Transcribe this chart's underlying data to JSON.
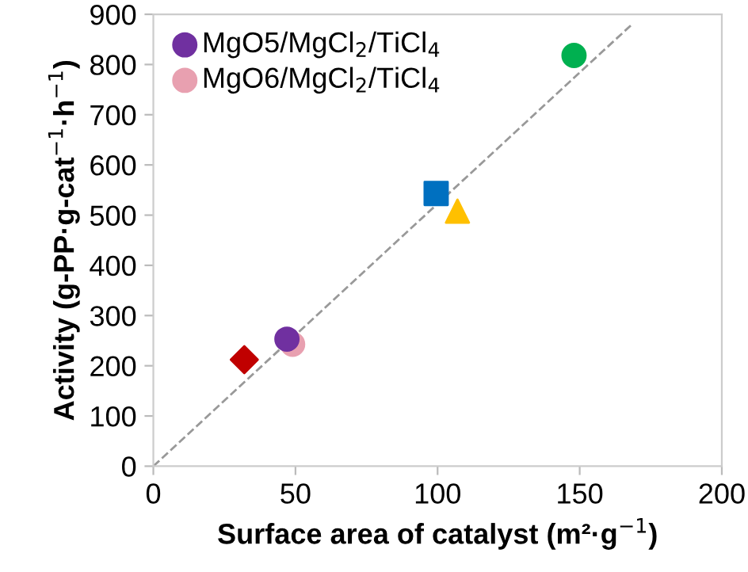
{
  "chart_data": {
    "type": "scatter",
    "xlabel": "Surface area of catalyst (m²·g$^{−1}$)",
    "ylabel": "Activity (g-PP·g-cat$^{−1}$·h$^{−1}$)",
    "xlim": [
      0,
      200
    ],
    "xticks": [
      0,
      50,
      100,
      150,
      200
    ],
    "ylim": [
      0,
      900
    ],
    "yticks": [
      0,
      100,
      200,
      300,
      400,
      500,
      600,
      700,
      800,
      900
    ],
    "grid": false,
    "legend": "top left",
    "series": [
      {
        "type": "line",
        "x": [
          0,
          168
        ],
        "values": [
          0,
          878
        ],
        "color": "#999999",
        "line_style": "dashed",
        "marker": "none"
      },
      {
        "x": [
          32
        ],
        "values": [
          212
        ],
        "color": "#c00000",
        "marker": "diamond"
      },
      {
        "x": [
          99.5
        ],
        "values": [
          543
        ],
        "color": "#0070c0",
        "marker": "square"
      },
      {
        "x": [
          107
        ],
        "values": [
          508
        ],
        "color": "#ffc000",
        "marker": "triangle"
      },
      {
        "x": [
          148
        ],
        "values": [
          818
        ],
        "color": "#00b050",
        "marker": "circle"
      },
      {
        "name": "MgO5/MgCl$_{2}$/TiCl$_{4}$",
        "x": [
          47
        ],
        "values": [
          253
        ],
        "color": "#7030a0",
        "marker": "circle"
      },
      {
        "name": "MgO6/MgCl$_{2}$/TiCl$_{4}$",
        "x": [
          49
        ],
        "values": [
          243
        ],
        "color": "#e8a0b0",
        "marker": "circle"
      }
    ]
  }
}
